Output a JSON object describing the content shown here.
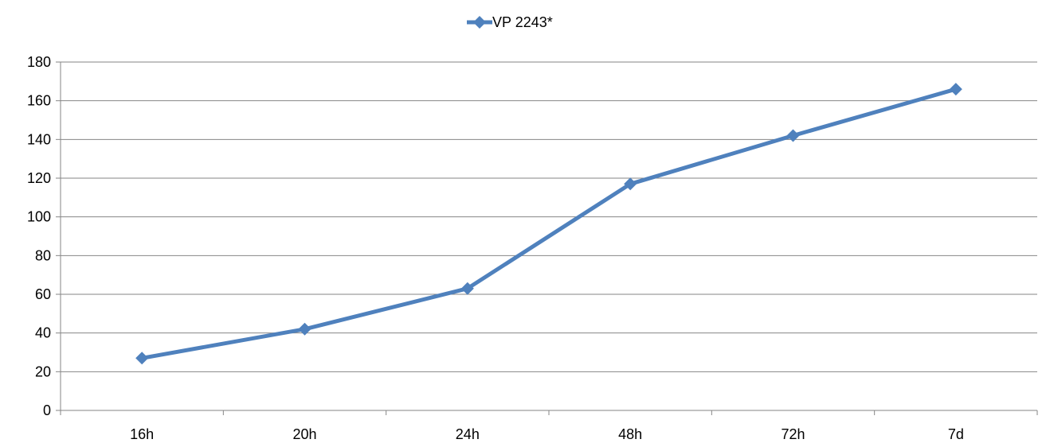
{
  "chart_data": {
    "type": "line",
    "categories": [
      "16h",
      "20h",
      "24h",
      "48h",
      "72h",
      "7d"
    ],
    "series": [
      {
        "name": "VP 2243*",
        "values": [
          27,
          42,
          63,
          117,
          142,
          166
        ],
        "color": "#4F81BD",
        "marker": "diamond"
      }
    ],
    "ylim": [
      0,
      180
    ],
    "yticks": [
      0,
      20,
      40,
      60,
      80,
      100,
      120,
      140,
      160,
      180
    ],
    "grid": true,
    "legend": "top-center"
  }
}
